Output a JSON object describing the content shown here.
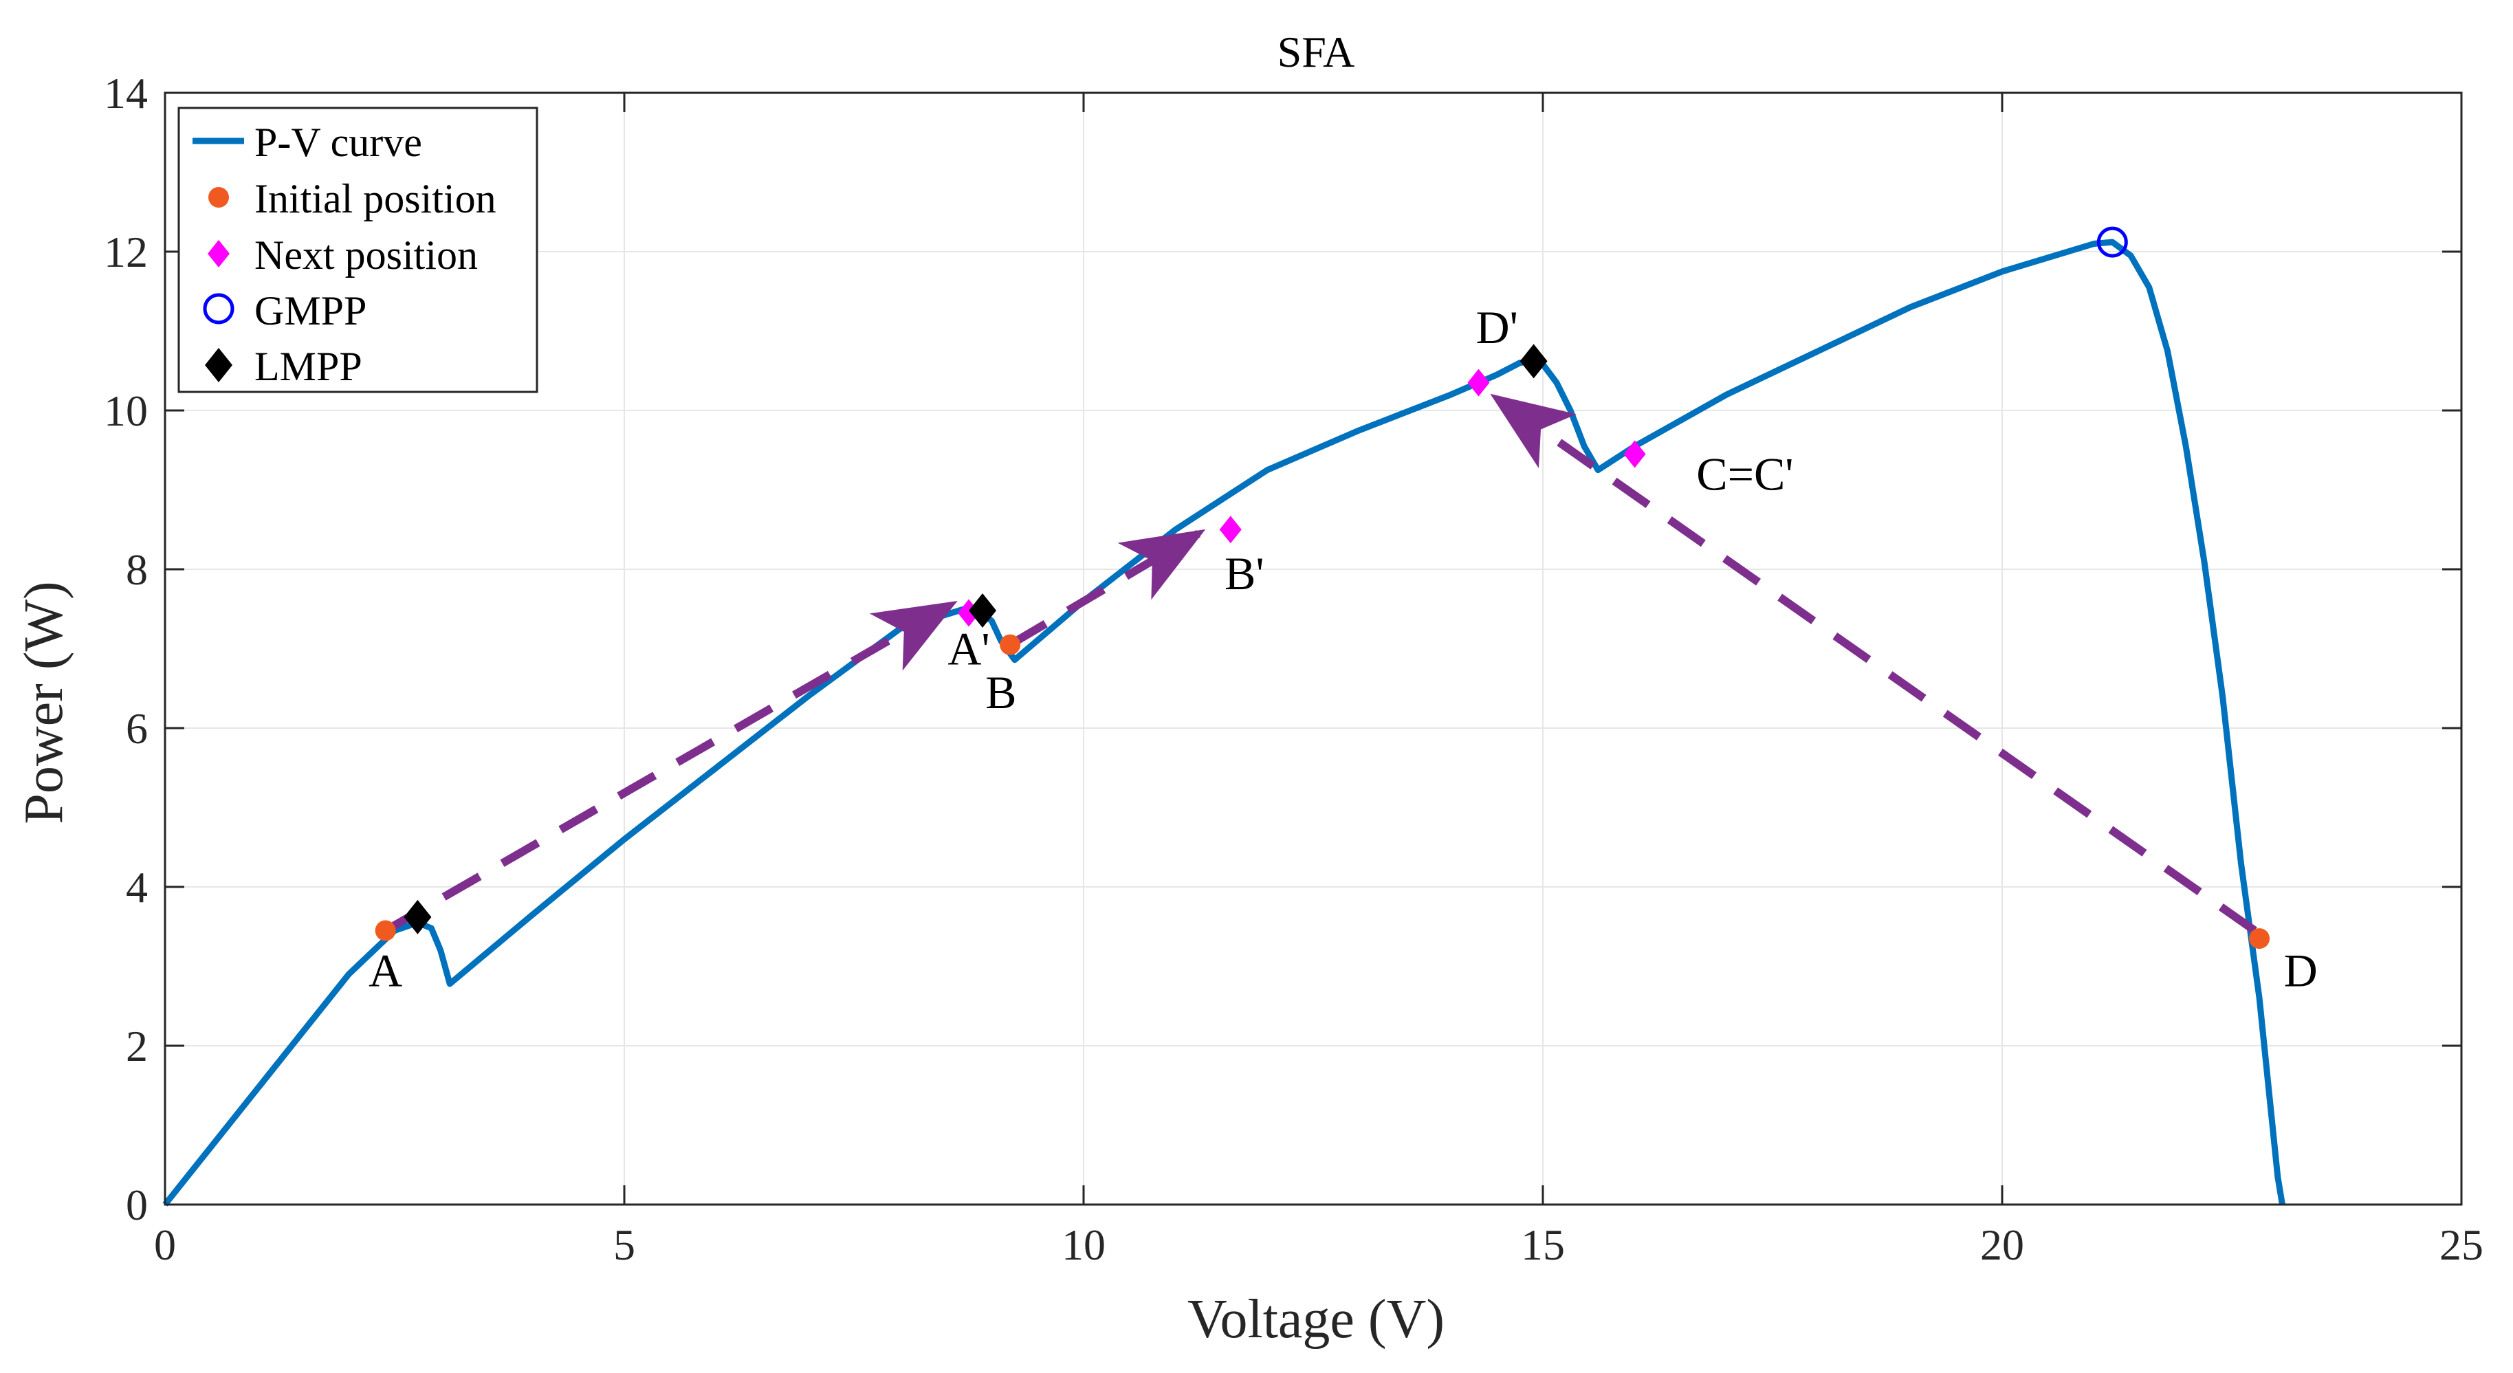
{
  "chart_data": {
    "type": "line",
    "title": "SFA",
    "xlabel": "Voltage (V)",
    "ylabel": "Power (W)",
    "xlim": [
      0,
      25
    ],
    "ylim": [
      0,
      14
    ],
    "xticks": [
      0,
      5,
      10,
      15,
      20,
      25
    ],
    "yticks": [
      0,
      2,
      4,
      6,
      8,
      10,
      12,
      14
    ],
    "grid": true,
    "legend_position": "top-left",
    "colors": {
      "curve": "#0072BD",
      "initial": "#F05A20",
      "next": "#FF00FF",
      "gmpp": "#0000FF",
      "lmpp": "#000000",
      "arrow": "#7E2F8E"
    },
    "series": [
      {
        "name": "P-V curve",
        "style": "line",
        "x": [
          0,
          1,
          2,
          2.5,
          2.75,
          2.9,
          3.0,
          3.1,
          4,
          5,
          6,
          7,
          8,
          8.7,
          8.85,
          9.0,
          9.1,
          9.25,
          10,
          11,
          12,
          13,
          14,
          14.5,
          14.75,
          14.9,
          15.0,
          15.15,
          15.3,
          15.45,
          15.6,
          16,
          17,
          18,
          19,
          20,
          21,
          21.2,
          21.4,
          21.6,
          21.8,
          22.0,
          22.2,
          22.4,
          22.6,
          22.8,
          23.0,
          23.05
        ],
        "y": [
          0,
          1.45,
          2.9,
          3.45,
          3.55,
          3.48,
          3.2,
          2.78,
          3.65,
          4.6,
          5.5,
          6.4,
          7.25,
          7.5,
          7.48,
          7.35,
          7.1,
          6.86,
          7.6,
          8.5,
          9.25,
          9.75,
          10.2,
          10.45,
          10.6,
          10.62,
          10.58,
          10.35,
          10.0,
          9.55,
          9.25,
          9.55,
          10.2,
          10.75,
          11.3,
          11.75,
          12.1,
          12.12,
          11.95,
          11.55,
          10.75,
          9.55,
          8.1,
          6.4,
          4.3,
          2.6,
          0.35,
          0
        ]
      },
      {
        "name": "Initial position",
        "style": "marker",
        "marker": "circle-filled",
        "points": [
          {
            "label": "A",
            "x": 2.4,
            "y": 3.45
          },
          {
            "label": "B",
            "x": 9.2,
            "y": 7.05
          },
          {
            "label": "D",
            "x": 22.8,
            "y": 3.35
          }
        ]
      },
      {
        "name": "Next position",
        "style": "marker",
        "marker": "diamond",
        "points": [
          {
            "label": "A'",
            "x": 8.75,
            "y": 7.45
          },
          {
            "label": "B'",
            "x": 11.6,
            "y": 8.5
          },
          {
            "label": "C=C'",
            "x": 16.0,
            "y": 9.45
          },
          {
            "label": "D'",
            "x": 14.3,
            "y": 10.35
          }
        ]
      },
      {
        "name": "GMPP",
        "style": "marker",
        "marker": "circle-open",
        "points": [
          {
            "x": 21.2,
            "y": 12.12
          }
        ]
      },
      {
        "name": "LMPP",
        "style": "marker",
        "marker": "diamond-black",
        "points": [
          {
            "x": 2.75,
            "y": 3.62
          },
          {
            "x": 8.9,
            "y": 7.48
          },
          {
            "x": 14.9,
            "y": 10.62
          }
        ]
      }
    ],
    "arrows": [
      {
        "from": [
          2.4,
          3.45
        ],
        "to": [
          8.55,
          7.55
        ]
      },
      {
        "from": [
          9.2,
          7.05
        ],
        "to": [
          11.25,
          8.45
        ]
      },
      {
        "from": [
          22.75,
          3.45
        ],
        "to": [
          14.5,
          10.15
        ]
      }
    ],
    "annotations": [
      {
        "text": "A",
        "x": 2.4,
        "y": 2.75
      },
      {
        "text": "A'",
        "x": 8.75,
        "y": 6.8
      },
      {
        "text": "B",
        "x": 9.1,
        "y": 6.25
      },
      {
        "text": "B'",
        "x": 11.75,
        "y": 7.75
      },
      {
        "text": "C=C'",
        "x": 17.2,
        "y": 9.0
      },
      {
        "text": "D'",
        "x": 14.5,
        "y": 10.85
      },
      {
        "text": "D",
        "x": 23.25,
        "y": 2.75
      }
    ]
  }
}
